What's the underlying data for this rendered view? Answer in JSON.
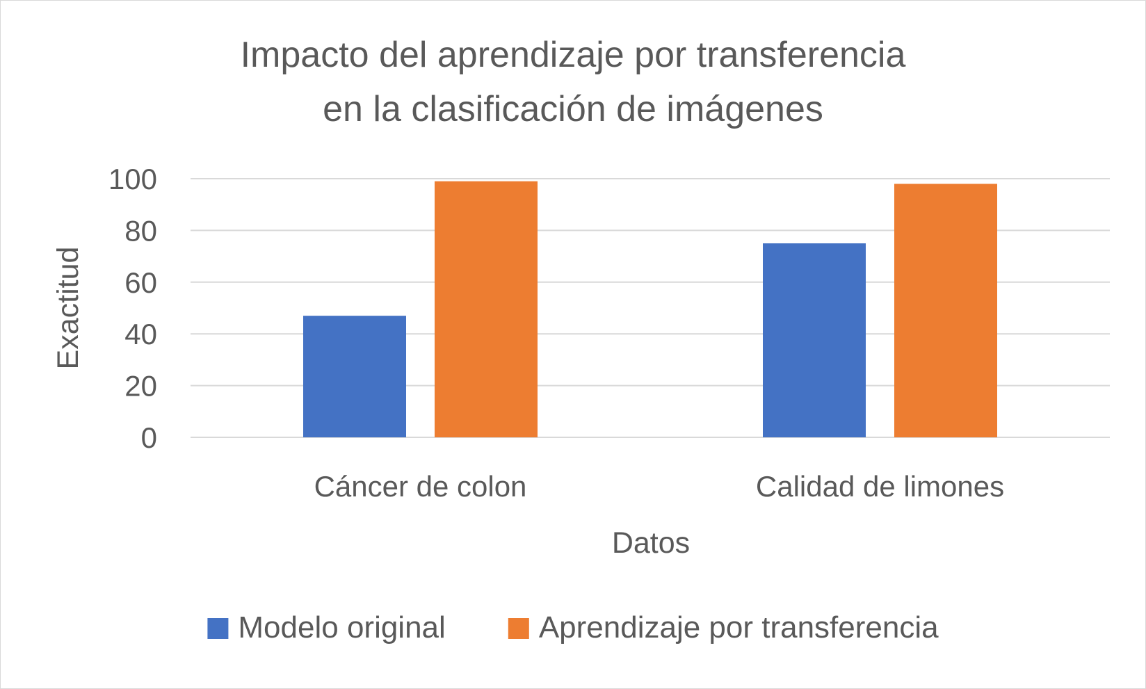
{
  "chart_data": {
    "type": "bar",
    "title": [
      "Impacto del aprendizaje por transferencia",
      "en la clasificación de imágenes"
    ],
    "xlabel": "Datos",
    "ylabel": "Exactitud",
    "categories": [
      "Cáncer de colon",
      "Calidad de limones"
    ],
    "series": [
      {
        "name": "Modelo original",
        "values": [
          47,
          75
        ],
        "color": "#4472C4"
      },
      {
        "name": "Aprendizaje por transferencia",
        "values": [
          99,
          98
        ],
        "color": "#ED7D31"
      }
    ],
    "ylim": [
      0,
      100
    ],
    "yticks": [
      0,
      20,
      40,
      60,
      80,
      100
    ],
    "grid": true,
    "legend": "bottom",
    "gridColor": "#d9d9d9",
    "textColor": "#595959"
  }
}
